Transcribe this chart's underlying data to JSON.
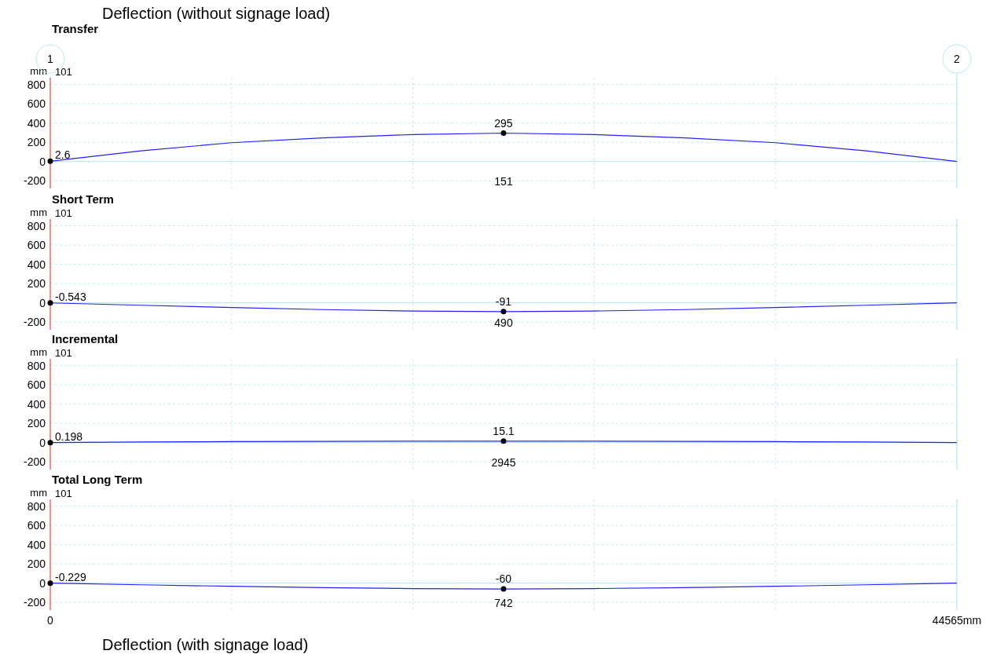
{
  "chart_data": [
    {
      "type": "line",
      "title": "Transfer",
      "ylabel": "mm",
      "annotations": [
        "Deflection (without signage load)",
        "1",
        "2",
        "101",
        "151"
      ],
      "x": [
        0,
        4456,
        8913,
        13370,
        17826,
        22282,
        26739,
        31196,
        35652,
        40109,
        44565
      ],
      "xlim": [
        0,
        44565
      ],
      "xticks": [
        {
          "value": 0,
          "label": null
        },
        {
          "value": 8913,
          "label": null
        },
        {
          "value": 17826,
          "label": null
        },
        {
          "value": 26739,
          "label": null
        },
        {
          "value": 35652,
          "label": null
        },
        {
          "value": 44565,
          "label": null
        }
      ],
      "ylim": [
        -280,
        870
      ],
      "yticks": [
        -200,
        0,
        200,
        400,
        600,
        800
      ],
      "grid": true,
      "tick_labels": "y",
      "series": [
        {
          "type": "line",
          "color": "#2020ff",
          "values": [
            2.6,
            110,
            195,
            245,
            280,
            295,
            280,
            245,
            195,
            110,
            0
          ]
        },
        {
          "type": "scatter",
          "color": "#000000",
          "values": [
            2.6,
            null,
            null,
            null,
            null,
            295,
            null,
            null,
            null,
            null,
            null
          ],
          "value_labels": [
            "2.6",
            null,
            null,
            null,
            null,
            "295",
            null,
            null,
            null,
            null,
            null
          ]
        }
      ],
      "ref_lines": [
        {
          "axis": "y",
          "value": 0,
          "color": "#b8e8ee"
        },
        {
          "axis": "x",
          "value": 44565,
          "color": "#b8e8ee"
        }
      ]
    },
    {
      "type": "line",
      "title": "Short Term",
      "ylabel": "mm",
      "annotations": [
        "101",
        "490"
      ],
      "x": [
        0,
        4456,
        8913,
        13370,
        17826,
        22282,
        26739,
        31196,
        35652,
        40109,
        44565
      ],
      "xlim": [
        0,
        44565
      ],
      "xticks": [
        {
          "value": 0,
          "label": null
        },
        {
          "value": 8913,
          "label": null
        },
        {
          "value": 17826,
          "label": null
        },
        {
          "value": 26739,
          "label": null
        },
        {
          "value": 35652,
          "label": null
        },
        {
          "value": 44565,
          "label": null
        }
      ],
      "ylim": [
        -280,
        870
      ],
      "yticks": [
        -200,
        0,
        200,
        400,
        600,
        800
      ],
      "grid": true,
      "tick_labels": "y",
      "series": [
        {
          "type": "line",
          "color": "#2020ff",
          "values": [
            -0.543,
            -25,
            -48,
            -70,
            -85,
            -91,
            -85,
            -70,
            -48,
            -25,
            0
          ]
        },
        {
          "type": "scatter",
          "color": "#000000",
          "values": [
            -0.543,
            null,
            null,
            null,
            null,
            -91,
            null,
            null,
            null,
            null,
            null
          ],
          "value_labels": [
            "-0.543",
            null,
            null,
            null,
            null,
            "-91",
            null,
            null,
            null,
            null,
            null
          ]
        }
      ],
      "ref_lines": [
        {
          "axis": "y",
          "value": 0,
          "color": "#b8e8ee"
        },
        {
          "axis": "x",
          "value": 44565,
          "color": "#b8e8ee"
        }
      ]
    },
    {
      "type": "line",
      "title": "Incremental",
      "ylabel": "mm",
      "annotations": [
        "101",
        "2945"
      ],
      "x": [
        0,
        4456,
        8913,
        13370,
        17826,
        22282,
        26739,
        31196,
        35652,
        40109,
        44565
      ],
      "xlim": [
        0,
        44565
      ],
      "xticks": [
        {
          "value": 0,
          "label": null
        },
        {
          "value": 8913,
          "label": null
        },
        {
          "value": 17826,
          "label": null
        },
        {
          "value": 26739,
          "label": null
        },
        {
          "value": 35652,
          "label": null
        },
        {
          "value": 44565,
          "label": null
        }
      ],
      "ylim": [
        -280,
        870
      ],
      "yticks": [
        -200,
        0,
        200,
        400,
        600,
        800
      ],
      "grid": true,
      "tick_labels": "y",
      "series": [
        {
          "type": "line",
          "color": "#2020ff",
          "values": [
            0.198,
            6,
            10,
            13,
            14.5,
            15.1,
            14.5,
            13,
            10,
            6,
            0
          ]
        },
        {
          "type": "scatter",
          "color": "#000000",
          "values": [
            0.198,
            null,
            null,
            null,
            null,
            15.1,
            null,
            null,
            null,
            null,
            null
          ],
          "value_labels": [
            "0.198",
            null,
            null,
            null,
            null,
            "15.1",
            null,
            null,
            null,
            null,
            null
          ]
        }
      ],
      "ref_lines": [
        {
          "axis": "y",
          "value": 0,
          "color": "#b8e8ee"
        },
        {
          "axis": "x",
          "value": 44565,
          "color": "#b8e8ee"
        }
      ]
    },
    {
      "type": "line",
      "title": "Total Long Term",
      "ylabel": "mm",
      "annotations": [
        "101",
        "742",
        "Deflection (with signage load)"
      ],
      "x": [
        0,
        4456,
        8913,
        13370,
        17826,
        22282,
        26739,
        31196,
        35652,
        40109,
        44565
      ],
      "xlim": [
        0,
        44565
      ],
      "xticks": [
        {
          "value": 0,
          "label": "0"
        },
        {
          "value": 8913,
          "label": null
        },
        {
          "value": 17826,
          "label": null
        },
        {
          "value": 26739,
          "label": null
        },
        {
          "value": 35652,
          "label": null
        },
        {
          "value": 44565,
          "label": "44565mm"
        }
      ],
      "ylim": [
        -280,
        870
      ],
      "yticks": [
        -200,
        0,
        200,
        400,
        600,
        800
      ],
      "grid": true,
      "series": [
        {
          "type": "line",
          "color": "#2020ff",
          "values": [
            -0.229,
            -17,
            -33,
            -46,
            -56,
            -60,
            -56,
            -46,
            -33,
            -17,
            0
          ]
        },
        {
          "type": "scatter",
          "color": "#000000",
          "values": [
            -0.229,
            null,
            null,
            null,
            null,
            -60,
            null,
            null,
            null,
            null,
            null
          ],
          "value_labels": [
            "-0.229",
            null,
            null,
            null,
            null,
            "-60",
            null,
            null,
            null,
            null,
            null
          ]
        }
      ],
      "ref_lines": [
        {
          "axis": "y",
          "value": 0,
          "color": "#b8e8ee"
        },
        {
          "axis": "x",
          "value": 44565,
          "color": "#b8e8ee"
        }
      ]
    }
  ]
}
